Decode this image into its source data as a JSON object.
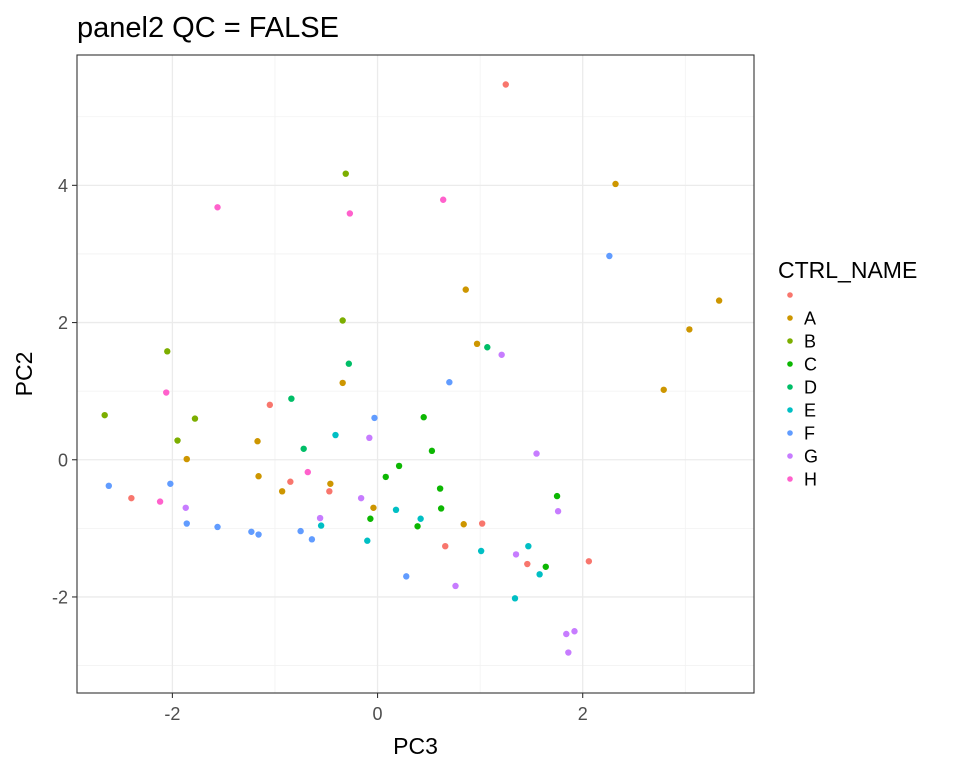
{
  "chart_data": {
    "type": "scatter",
    "title": "panel2 QC =  FALSE",
    "xlabel": "PC3",
    "ylabel": "PC2",
    "xlim": [
      -2.93,
      3.67
    ],
    "ylim": [
      -3.4,
      5.9
    ],
    "xticks": [
      {
        "value": -2,
        "label": "-2"
      },
      {
        "value": 0,
        "label": "0"
      },
      {
        "value": 2,
        "label": "2"
      }
    ],
    "yticks": [
      {
        "value": -2,
        "label": "-2"
      },
      {
        "value": 0,
        "label": "0"
      },
      {
        "value": 2,
        "label": "2"
      },
      {
        "value": 4,
        "label": "4"
      }
    ],
    "grid": true,
    "legend": {
      "title": "CTRL_NAME",
      "position": "right"
    },
    "series": [
      {
        "name": "",
        "color": "#F8766D",
        "points": [
          [
            1.25,
            5.47
          ],
          [
            -1.05,
            0.8
          ],
          [
            -2.4,
            -0.56
          ],
          [
            -0.85,
            -0.32
          ],
          [
            -0.47,
            -0.46
          ],
          [
            0.66,
            -1.26
          ],
          [
            1.02,
            -0.93
          ],
          [
            1.46,
            -1.52
          ],
          [
            2.06,
            -1.48
          ]
        ]
      },
      {
        "name": "A",
        "color": "#CD9600",
        "points": [
          [
            2.32,
            4.02
          ],
          [
            0.86,
            2.48
          ],
          [
            3.33,
            2.32
          ],
          [
            3.04,
            1.9
          ],
          [
            0.97,
            1.69
          ],
          [
            -0.34,
            1.12
          ],
          [
            2.79,
            1.02
          ],
          [
            -1.17,
            0.27
          ],
          [
            -1.86,
            0.01
          ],
          [
            -1.16,
            -0.24
          ],
          [
            -0.93,
            -0.46
          ],
          [
            -0.46,
            -0.35
          ],
          [
            -0.04,
            -0.7
          ],
          [
            0.84,
            -0.94
          ]
        ]
      },
      {
        "name": "B",
        "color": "#7CAE00",
        "points": [
          [
            -0.31,
            4.17
          ],
          [
            -0.34,
            2.03
          ],
          [
            -2.05,
            1.58
          ],
          [
            -2.66,
            0.65
          ],
          [
            -1.78,
            0.6
          ],
          [
            -1.95,
            0.28
          ]
        ]
      },
      {
        "name": "C",
        "color": "#0CB702",
        "points": [
          [
            0.45,
            0.62
          ],
          [
            0.53,
            0.13
          ],
          [
            0.21,
            -0.09
          ],
          [
            0.08,
            -0.25
          ],
          [
            0.61,
            -0.42
          ],
          [
            0.62,
            -0.71
          ],
          [
            -0.07,
            -0.86
          ],
          [
            0.39,
            -0.97
          ],
          [
            1.75,
            -0.53
          ],
          [
            1.64,
            -1.56
          ]
        ]
      },
      {
        "name": "D",
        "color": "#00BE67",
        "points": [
          [
            1.07,
            1.64
          ],
          [
            -0.28,
            1.4
          ],
          [
            -0.84,
            0.89
          ],
          [
            -0.72,
            0.16
          ]
        ]
      },
      {
        "name": "E",
        "color": "#00BFC4",
        "points": [
          [
            -0.41,
            0.36
          ],
          [
            0.18,
            -0.73
          ],
          [
            0.42,
            -0.86
          ],
          [
            -0.55,
            -0.96
          ],
          [
            -0.1,
            -1.18
          ],
          [
            1.01,
            -1.33
          ],
          [
            1.47,
            -1.26
          ],
          [
            1.58,
            -1.67
          ],
          [
            1.34,
            -2.02
          ]
        ]
      },
      {
        "name": "F",
        "color": "#619CFF",
        "points": [
          [
            2.26,
            2.97
          ],
          [
            0.7,
            1.13
          ],
          [
            -0.03,
            0.61
          ],
          [
            -2.62,
            -0.38
          ],
          [
            -2.02,
            -0.35
          ],
          [
            -1.86,
            -0.93
          ],
          [
            -1.56,
            -0.98
          ],
          [
            -1.23,
            -1.05
          ],
          [
            -1.16,
            -1.09
          ],
          [
            -0.75,
            -1.04
          ],
          [
            -0.64,
            -1.16
          ],
          [
            0.28,
            -1.7
          ]
        ]
      },
      {
        "name": "G",
        "color": "#C77CFF",
        "points": [
          [
            1.21,
            1.53
          ],
          [
            1.55,
            0.09
          ],
          [
            -0.08,
            0.32
          ],
          [
            -0.16,
            -0.56
          ],
          [
            -0.56,
            -0.85
          ],
          [
            -1.87,
            -0.7
          ],
          [
            1.76,
            -0.75
          ],
          [
            1.35,
            -1.38
          ],
          [
            0.76,
            -1.84
          ],
          [
            1.84,
            -2.54
          ],
          [
            1.92,
            -2.5
          ],
          [
            1.86,
            -2.81
          ]
        ]
      },
      {
        "name": "H",
        "color": "#FF61CC",
        "points": [
          [
            0.64,
            3.79
          ],
          [
            -1.56,
            3.68
          ],
          [
            -0.27,
            3.59
          ],
          [
            -2.06,
            0.98
          ],
          [
            -0.68,
            -0.18
          ],
          [
            -2.12,
            -0.61
          ]
        ]
      }
    ]
  }
}
